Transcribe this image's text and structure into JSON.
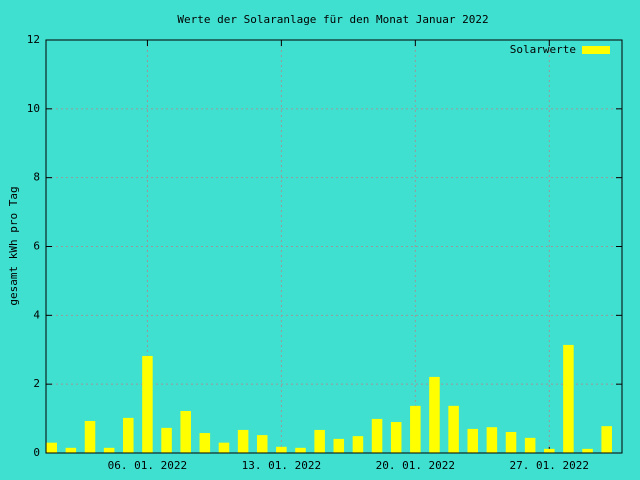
{
  "chart_data": {
    "type": "bar",
    "title": "Werte der Solaranlage für den Monat Januar 2022",
    "y_label": "gesamt kWh pro Tag",
    "x": [
      1,
      2,
      3,
      4,
      5,
      6,
      7,
      8,
      9,
      10,
      11,
      12,
      13,
      14,
      15,
      16,
      17,
      18,
      19,
      20,
      21,
      22,
      23,
      24,
      25,
      26,
      27,
      28,
      29,
      30
    ],
    "series": [
      {
        "name": "Solarwerte",
        "color": "#ffff00",
        "values": [
          0.3,
          0.15,
          0.93,
          0.15,
          1.02,
          2.82,
          0.73,
          1.22,
          0.58,
          0.3,
          0.67,
          0.52,
          0.18,
          0.15,
          0.67,
          0.41,
          0.49,
          0.99,
          0.9,
          1.37,
          2.21,
          1.37,
          0.7,
          0.75,
          0.61,
          0.44,
          0.12,
          3.14,
          0.12,
          0.78
        ]
      }
    ],
    "xlim": [
      0.7,
      30.8
    ],
    "xticks": [
      {
        "value": 6,
        "label": "06. 01. 2022"
      },
      {
        "value": 13,
        "label": "13. 01. 2022"
      },
      {
        "value": 20,
        "label": "20. 01. 2022"
      },
      {
        "value": 27,
        "label": "27. 01. 2022"
      }
    ],
    "ylim": [
      0,
      12
    ],
    "yticks": [
      0,
      2,
      4,
      6,
      8,
      10,
      12
    ],
    "grid": true,
    "legend": "top-right"
  }
}
